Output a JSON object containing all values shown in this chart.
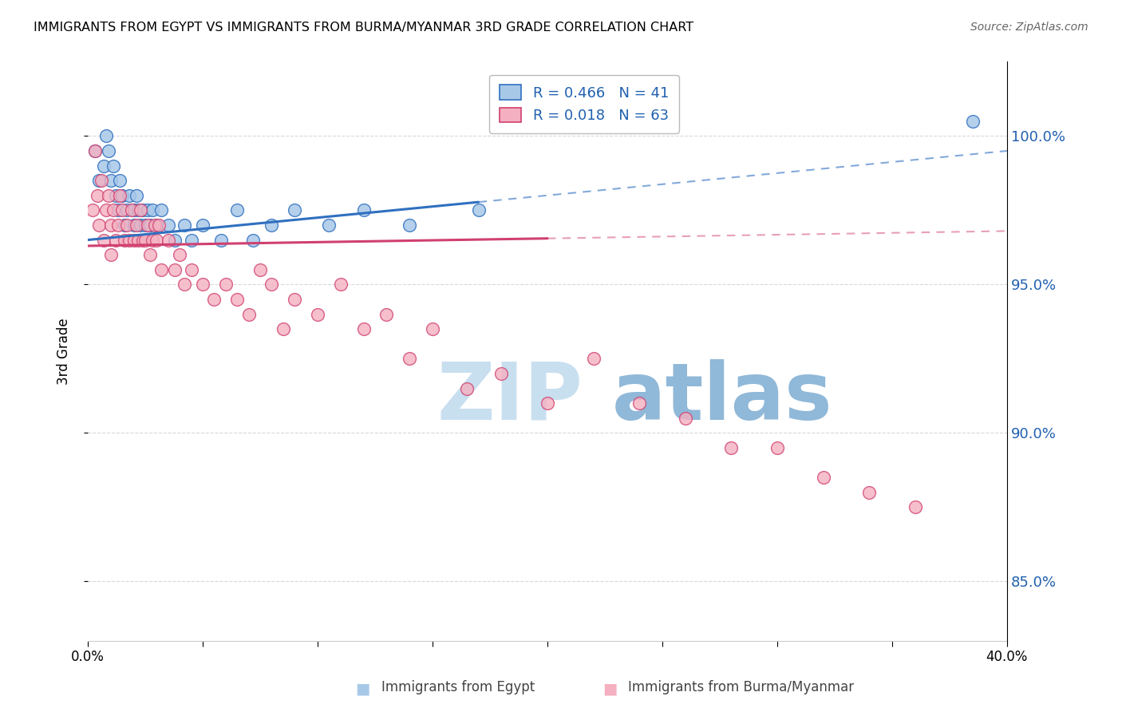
{
  "title": "IMMIGRANTS FROM EGYPT VS IMMIGRANTS FROM BURMA/MYANMAR 3RD GRADE CORRELATION CHART",
  "source": "Source: ZipAtlas.com",
  "ylabel": "3rd Grade",
  "xlim": [
    0.0,
    40.0
  ],
  "ylim": [
    83.0,
    102.5
  ],
  "yticks": [
    85.0,
    90.0,
    95.0,
    100.0
  ],
  "ytick_labels": [
    "85.0%",
    "90.0%",
    "95.0%",
    "100.0%"
  ],
  "legend_r1": "R = 0.466",
  "legend_n1": "N = 41",
  "legend_r2": "R = 0.018",
  "legend_n2": "N = 63",
  "color_egypt": "#a8c8e8",
  "color_burma": "#f4b0c0",
  "color_trendline_egypt": "#3070c0",
  "color_trendline_burma": "#d04070",
  "watermark_zip": "ZIP",
  "watermark_atlas": "atlas",
  "watermark_color_zip": "#c8dff0",
  "watermark_color_atlas": "#90b8d8",
  "egypt_x": [
    0.3,
    0.5,
    0.7,
    0.8,
    0.9,
    1.0,
    1.1,
    1.2,
    1.3,
    1.4,
    1.5,
    1.6,
    1.7,
    1.8,
    2.0,
    2.0,
    2.1,
    2.2,
    2.3,
    2.4,
    2.5,
    2.6,
    2.7,
    2.8,
    3.0,
    3.2,
    3.5,
    3.8,
    4.2,
    4.5,
    5.0,
    5.8,
    6.5,
    7.2,
    8.0,
    9.0,
    10.5,
    12.0,
    14.0,
    17.0,
    38.5
  ],
  "egypt_y": [
    99.5,
    98.5,
    99.0,
    100.0,
    99.5,
    98.5,
    99.0,
    98.0,
    97.5,
    98.5,
    98.0,
    97.0,
    97.5,
    98.0,
    97.5,
    97.0,
    98.0,
    97.5,
    97.0,
    97.5,
    97.0,
    97.5,
    97.0,
    97.5,
    97.0,
    97.5,
    97.0,
    96.5,
    97.0,
    96.5,
    97.0,
    96.5,
    97.5,
    96.5,
    97.0,
    97.5,
    97.0,
    97.5,
    97.0,
    97.5,
    100.5
  ],
  "burma_x": [
    0.2,
    0.3,
    0.4,
    0.5,
    0.6,
    0.7,
    0.8,
    0.9,
    1.0,
    1.0,
    1.1,
    1.2,
    1.3,
    1.4,
    1.5,
    1.6,
    1.7,
    1.8,
    1.9,
    2.0,
    2.1,
    2.2,
    2.3,
    2.4,
    2.5,
    2.6,
    2.7,
    2.8,
    2.9,
    3.0,
    3.1,
    3.2,
    3.5,
    3.8,
    4.0,
    4.2,
    4.5,
    5.0,
    5.5,
    6.0,
    6.5,
    7.0,
    7.5,
    8.0,
    8.5,
    9.0,
    10.0,
    11.0,
    12.0,
    13.0,
    14.0,
    15.0,
    16.5,
    18.0,
    20.0,
    22.0,
    24.0,
    26.0,
    28.0,
    30.0,
    32.0,
    34.0,
    36.0
  ],
  "burma_y": [
    97.5,
    99.5,
    98.0,
    97.0,
    98.5,
    96.5,
    97.5,
    98.0,
    97.0,
    96.0,
    97.5,
    96.5,
    97.0,
    98.0,
    97.5,
    96.5,
    97.0,
    96.5,
    97.5,
    96.5,
    97.0,
    96.5,
    97.5,
    96.5,
    96.5,
    97.0,
    96.0,
    96.5,
    97.0,
    96.5,
    97.0,
    95.5,
    96.5,
    95.5,
    96.0,
    95.0,
    95.5,
    95.0,
    94.5,
    95.0,
    94.5,
    94.0,
    95.5,
    95.0,
    93.5,
    94.5,
    94.0,
    95.0,
    93.5,
    94.0,
    92.5,
    93.5,
    91.5,
    92.0,
    91.0,
    92.5,
    91.0,
    90.5,
    89.5,
    89.5,
    88.5,
    88.0,
    87.5
  ],
  "egypt_trendline_x0": 0.0,
  "egypt_trendline_y0": 96.5,
  "egypt_trendline_x1": 40.0,
  "egypt_trendline_y1": 99.5,
  "egypt_solid_end": 17.0,
  "burma_trendline_x0": 0.0,
  "burma_trendline_y0": 96.3,
  "burma_trendline_x1": 40.0,
  "burma_trendline_y1": 96.8,
  "burma_solid_end": 20.0
}
